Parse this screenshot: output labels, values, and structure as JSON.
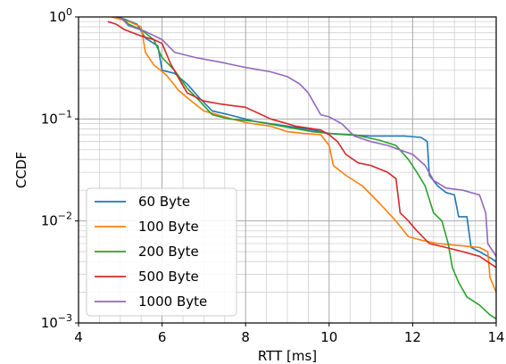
{
  "chart_data": {
    "type": "line",
    "title": "",
    "xlabel": "RTT [ms]",
    "ylabel": "CCDF",
    "xlim": [
      4,
      14
    ],
    "ylim": [
      0.001,
      1
    ],
    "yscale": "log",
    "x_ticks": [
      4,
      6,
      8,
      10,
      12,
      14
    ],
    "x_tick_labels": [
      "4",
      "6",
      "8",
      "10",
      "12",
      "14"
    ],
    "y_ticks": [
      0.001,
      0.01,
      0.1,
      1
    ],
    "y_tick_labels": [
      {
        "base": "10",
        "exp": "−3"
      },
      {
        "base": "10",
        "exp": "−2"
      },
      {
        "base": "10",
        "exp": "−1"
      },
      {
        "base": "10",
        "exp": "0"
      }
    ],
    "grid": true,
    "legend_position": "lower-left",
    "series": [
      {
        "name": "60 Byte",
        "color": "#1f77b4",
        "points": [
          [
            4.9,
            1.0
          ],
          [
            5.1,
            0.95
          ],
          [
            5.4,
            0.85
          ],
          [
            5.6,
            0.62
          ],
          [
            5.9,
            0.52
          ],
          [
            6.0,
            0.3
          ],
          [
            6.3,
            0.28
          ],
          [
            6.6,
            0.22
          ],
          [
            6.9,
            0.16
          ],
          [
            7.2,
            0.12
          ],
          [
            7.6,
            0.11
          ],
          [
            8.2,
            0.095
          ],
          [
            9.0,
            0.085
          ],
          [
            9.6,
            0.078
          ],
          [
            10.0,
            0.072
          ],
          [
            10.4,
            0.07
          ],
          [
            11.0,
            0.068
          ],
          [
            11.8,
            0.068
          ],
          [
            12.2,
            0.066
          ],
          [
            12.35,
            0.06
          ],
          [
            12.4,
            0.028
          ],
          [
            12.6,
            0.022
          ],
          [
            12.8,
            0.019
          ],
          [
            13.0,
            0.018
          ],
          [
            13.1,
            0.011
          ],
          [
            13.3,
            0.011
          ],
          [
            13.4,
            0.0055
          ],
          [
            13.6,
            0.005
          ],
          [
            13.8,
            0.0045
          ],
          [
            14.0,
            0.004
          ]
        ]
      },
      {
        "name": "100 Byte",
        "color": "#ff7f0e",
        "points": [
          [
            4.8,
            1.0
          ],
          [
            5.2,
            0.9
          ],
          [
            5.5,
            0.8
          ],
          [
            5.6,
            0.45
          ],
          [
            5.8,
            0.34
          ],
          [
            6.1,
            0.27
          ],
          [
            6.4,
            0.19
          ],
          [
            6.7,
            0.15
          ],
          [
            7.0,
            0.12
          ],
          [
            7.5,
            0.105
          ],
          [
            8.0,
            0.092
          ],
          [
            8.6,
            0.085
          ],
          [
            9.0,
            0.075
          ],
          [
            9.4,
            0.072
          ],
          [
            9.8,
            0.07
          ],
          [
            10.0,
            0.055
          ],
          [
            10.1,
            0.035
          ],
          [
            10.4,
            0.028
          ],
          [
            10.8,
            0.022
          ],
          [
            11.2,
            0.015
          ],
          [
            11.6,
            0.01
          ],
          [
            11.9,
            0.007
          ],
          [
            12.2,
            0.0065
          ],
          [
            12.6,
            0.006
          ],
          [
            13.0,
            0.0058
          ],
          [
            13.6,
            0.0055
          ],
          [
            13.8,
            0.005
          ],
          [
            13.85,
            0.0028
          ],
          [
            14.0,
            0.002
          ]
        ]
      },
      {
        "name": "200 Byte",
        "color": "#2ca02c",
        "points": [
          [
            5.0,
            1.0
          ],
          [
            5.2,
            0.85
          ],
          [
            5.5,
            0.75
          ],
          [
            5.8,
            0.6
          ],
          [
            6.0,
            0.4
          ],
          [
            6.3,
            0.3
          ],
          [
            6.6,
            0.2
          ],
          [
            6.9,
            0.15
          ],
          [
            7.2,
            0.11
          ],
          [
            7.6,
            0.1
          ],
          [
            8.2,
            0.095
          ],
          [
            9.0,
            0.083
          ],
          [
            9.6,
            0.075
          ],
          [
            10.0,
            0.072
          ],
          [
            10.6,
            0.07
          ],
          [
            11.2,
            0.062
          ],
          [
            11.6,
            0.055
          ],
          [
            11.9,
            0.04
          ],
          [
            12.1,
            0.03
          ],
          [
            12.3,
            0.022
          ],
          [
            12.5,
            0.012
          ],
          [
            12.7,
            0.01
          ],
          [
            12.85,
            0.006
          ],
          [
            12.95,
            0.0035
          ],
          [
            13.1,
            0.0025
          ],
          [
            13.3,
            0.0018
          ],
          [
            13.6,
            0.0015
          ],
          [
            13.85,
            0.0012
          ],
          [
            14.0,
            0.0011
          ]
        ]
      },
      {
        "name": "500 Byte",
        "color": "#d62728",
        "points": [
          [
            4.7,
            0.9
          ],
          [
            4.9,
            0.85
          ],
          [
            5.1,
            0.75
          ],
          [
            5.3,
            0.7
          ],
          [
            5.5,
            0.65
          ],
          [
            5.8,
            0.6
          ],
          [
            6.0,
            0.55
          ],
          [
            6.2,
            0.35
          ],
          [
            6.4,
            0.25
          ],
          [
            6.6,
            0.18
          ],
          [
            7.0,
            0.15
          ],
          [
            7.4,
            0.14
          ],
          [
            8.0,
            0.13
          ],
          [
            8.6,
            0.1
          ],
          [
            9.2,
            0.085
          ],
          [
            9.8,
            0.078
          ],
          [
            10.0,
            0.07
          ],
          [
            10.2,
            0.06
          ],
          [
            10.4,
            0.045
          ],
          [
            10.7,
            0.037
          ],
          [
            11.0,
            0.035
          ],
          [
            11.4,
            0.03
          ],
          [
            11.6,
            0.026
          ],
          [
            11.7,
            0.012
          ],
          [
            11.9,
            0.01
          ],
          [
            12.1,
            0.008
          ],
          [
            12.4,
            0.006
          ],
          [
            12.8,
            0.0055
          ],
          [
            13.2,
            0.005
          ],
          [
            13.6,
            0.0045
          ],
          [
            14.0,
            0.0035
          ]
        ]
      },
      {
        "name": "1000 Byte",
        "color": "#9467bd",
        "points": [
          [
            5.0,
            1.0
          ],
          [
            5.2,
            0.82
          ],
          [
            5.6,
            0.72
          ],
          [
            6.0,
            0.6
          ],
          [
            6.3,
            0.45
          ],
          [
            6.8,
            0.4
          ],
          [
            7.4,
            0.36
          ],
          [
            8.0,
            0.32
          ],
          [
            8.6,
            0.29
          ],
          [
            9.0,
            0.26
          ],
          [
            9.3,
            0.22
          ],
          [
            9.5,
            0.18
          ],
          [
            9.8,
            0.11
          ],
          [
            10.0,
            0.105
          ],
          [
            10.3,
            0.09
          ],
          [
            10.6,
            0.068
          ],
          [
            11.0,
            0.06
          ],
          [
            11.4,
            0.055
          ],
          [
            11.8,
            0.048
          ],
          [
            12.0,
            0.045
          ],
          [
            12.3,
            0.035
          ],
          [
            12.5,
            0.025
          ],
          [
            12.8,
            0.021
          ],
          [
            13.2,
            0.02
          ],
          [
            13.6,
            0.018
          ],
          [
            13.75,
            0.012
          ],
          [
            13.8,
            0.006
          ],
          [
            14.0,
            0.0045
          ]
        ]
      }
    ]
  }
}
